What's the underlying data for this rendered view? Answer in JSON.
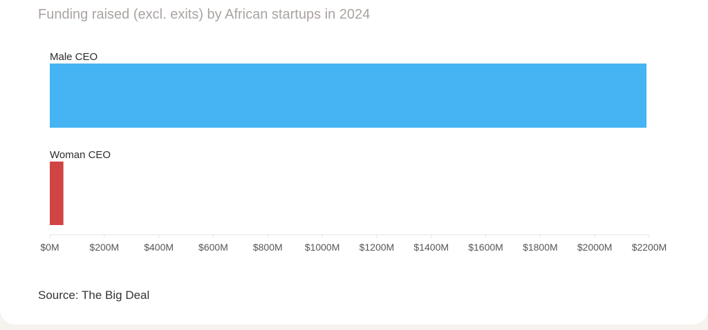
{
  "chart_data": {
    "type": "bar",
    "orientation": "horizontal",
    "title": "Funding raised (excl. exits) by African startups in 2024",
    "categories": [
      "Male CEO",
      "Woman CEO"
    ],
    "values": [
      2190,
      50
    ],
    "colors": [
      "#46b4f2",
      "#d14444"
    ],
    "xlabel": "",
    "ylabel": "",
    "xlim": [
      0,
      2200
    ],
    "xticks": [
      0,
      200,
      400,
      600,
      800,
      1000,
      1200,
      1400,
      1600,
      1800,
      2000,
      2200
    ],
    "xtick_labels": [
      "$0M",
      "$200M",
      "$400M",
      "$600M",
      "$800M",
      "$1000M",
      "$1200M",
      "$1400M",
      "$1600M",
      "$1800M",
      "$2000M",
      "$2200M"
    ],
    "grid": false,
    "source": "Source: The Big Deal"
  }
}
